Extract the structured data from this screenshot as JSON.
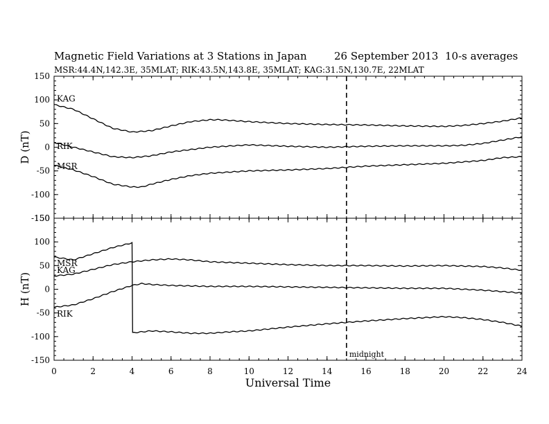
{
  "header": {
    "title": "Magnetic Field Variations at 3 Stations in Japan",
    "date": "26 September 2013",
    "averaging": "10-s averages",
    "stations": "MSR:44.4N,142.3E, 35MLAT;  RIK:43.5N,143.8E, 35MLAT;  KAG:31.5N,130.7E, 22MLAT"
  },
  "annotations": {
    "midnight_label": "midnight",
    "midnight_ut": 15
  },
  "chart_data": [
    {
      "type": "line",
      "panel": "D",
      "ylabel": "D (nT)",
      "xlabel": "Universal Time",
      "xlim": [
        0,
        24
      ],
      "ylim": [
        -150,
        150
      ],
      "x_ticks": [
        0,
        2,
        4,
        6,
        8,
        10,
        12,
        14,
        16,
        18,
        20,
        22,
        24
      ],
      "y_ticks": [
        150,
        100,
        50,
        0,
        -50,
        -100,
        -150
      ],
      "series": [
        {
          "name": "KAG",
          "x": [
            0,
            1,
            2,
            3,
            4,
            5,
            6,
            7,
            8,
            8.5,
            10,
            12,
            14,
            16,
            18,
            20,
            21,
            22,
            23,
            24
          ],
          "values": [
            90,
            80,
            60,
            40,
            32,
            35,
            45,
            54,
            58,
            58,
            54,
            50,
            48,
            47,
            45,
            44,
            46,
            50,
            55,
            62
          ]
        },
        {
          "name": "RIK",
          "x": [
            0,
            1,
            2,
            3,
            4,
            5,
            6,
            8,
            10,
            12,
            14,
            16,
            18,
            20,
            21,
            22,
            23,
            24
          ],
          "values": [
            10,
            0,
            -10,
            -20,
            -22,
            -18,
            -10,
            0,
            5,
            2,
            0,
            2,
            3,
            3,
            4,
            8,
            15,
            22
          ]
        },
        {
          "name": "MSR",
          "x": [
            0,
            1,
            2,
            3,
            4,
            4.5,
            5,
            6,
            7,
            8,
            10,
            12,
            14,
            16,
            18,
            20,
            22,
            23,
            24
          ],
          "values": [
            -38,
            -48,
            -62,
            -78,
            -84,
            -84,
            -78,
            -68,
            -60,
            -55,
            -50,
            -48,
            -45,
            -40,
            -37,
            -34,
            -28,
            -22,
            -20
          ]
        }
      ]
    },
    {
      "type": "line",
      "panel": "H",
      "ylabel": "H (nT)",
      "xlabel": "Universal Time",
      "xlim": [
        0,
        24
      ],
      "ylim": [
        -150,
        150
      ],
      "x_ticks": [
        0,
        2,
        4,
        6,
        8,
        10,
        12,
        14,
        16,
        18,
        20,
        22,
        24
      ],
      "y_ticks": [
        150,
        100,
        50,
        0,
        -50,
        -100,
        -150
      ],
      "series": [
        {
          "name": "MSR",
          "x": [
            0,
            1,
            2,
            3,
            4,
            4.01,
            4.02,
            5,
            6,
            7,
            8,
            9,
            10,
            12,
            14,
            16,
            18,
            19,
            20,
            21,
            22,
            23,
            24
          ],
          "values": [
            68,
            62,
            75,
            88,
            98,
            98,
            -92,
            -88,
            -90,
            -93,
            -93,
            -90,
            -88,
            -80,
            -73,
            -67,
            -62,
            -60,
            -58,
            -60,
            -64,
            -70,
            -78
          ]
        },
        {
          "name": "KAG",
          "x": [
            0,
            1,
            2,
            3,
            4,
            5,
            6,
            7,
            8,
            10,
            12,
            14,
            16,
            18,
            20,
            22,
            23,
            24
          ],
          "values": [
            28,
            32,
            42,
            52,
            58,
            62,
            64,
            62,
            58,
            55,
            52,
            50,
            50,
            49,
            50,
            48,
            45,
            40
          ]
        },
        {
          "name": "RIK",
          "x": [
            0,
            1,
            2,
            3,
            4,
            4.5,
            5,
            6,
            8,
            10,
            12,
            14,
            16,
            18,
            20,
            22,
            23,
            24
          ],
          "values": [
            -38,
            -33,
            -20,
            -5,
            8,
            12,
            10,
            8,
            6,
            6,
            5,
            4,
            3,
            2,
            2,
            -2,
            -5,
            -8
          ]
        }
      ]
    }
  ]
}
